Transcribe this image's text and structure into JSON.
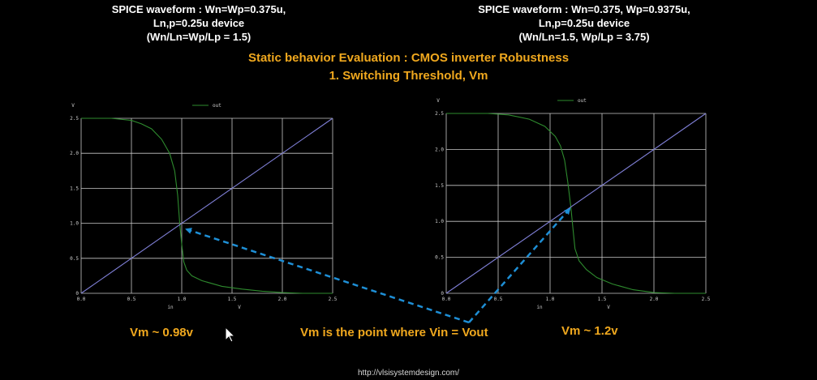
{
  "header_left": {
    "line1": "SPICE waveform : Wn=Wp=0.375u,",
    "line2": "Ln,p=0.25u device",
    "line3": "(Wn/Ln=Wp/Lp = 1.5)"
  },
  "header_right": {
    "line1": "SPICE waveform : Wn=0.375, Wp=0.9375u,",
    "line2": "Ln,p=0.25u device",
    "line3": "(Wn/Ln=1.5, Wp/Lp = 3.75)"
  },
  "title_line1": "Static behavior Evaluation : CMOS inverter Robustness",
  "title_line2": "1. Switching Threshold, Vm",
  "annotations": {
    "vm_left": "Vm ~ 0.98v",
    "vm_mid": "Vm is the point where Vin = Vout",
    "vm_right": "Vm ~ 1.2v"
  },
  "footer_url": "http://vlsisystemdesign.com/",
  "colors": {
    "background": "#000000",
    "grid": "#c8c8c8",
    "out_curve": "#2e8b2e",
    "diagonal": "#7f7fd6",
    "arrow": "#1e8fd6",
    "header": "#ffffff",
    "accent": "#f0a81e"
  },
  "chart_data": [
    {
      "type": "line",
      "title": "",
      "xlabel": "in",
      "x_unit": "V",
      "ylabel": "",
      "y_unit": "V",
      "xlim": [
        0,
        2.5
      ],
      "ylim": [
        0,
        2.5
      ],
      "x_ticks": [
        "0.0",
        "0.5",
        "1.0",
        "1.5",
        "2.0",
        "2.5"
      ],
      "y_ticks": [
        "0",
        "0.5",
        "1.0",
        "1.5",
        "2.0",
        "2.5"
      ],
      "grid": true,
      "legend": "top-left",
      "series": [
        {
          "name": "out",
          "points": [
            [
              0,
              2.5
            ],
            [
              0.3,
              2.5
            ],
            [
              0.5,
              2.47
            ],
            [
              0.6,
              2.42
            ],
            [
              0.7,
              2.35
            ],
            [
              0.8,
              2.2
            ],
            [
              0.88,
              2.0
            ],
            [
              0.93,
              1.75
            ],
            [
              0.96,
              1.4
            ],
            [
              0.98,
              1.0
            ],
            [
              1.0,
              0.7
            ],
            [
              1.02,
              0.45
            ],
            [
              1.05,
              0.33
            ],
            [
              1.1,
              0.25
            ],
            [
              1.2,
              0.18
            ],
            [
              1.4,
              0.1
            ],
            [
              1.6,
              0.06
            ],
            [
              1.8,
              0.03
            ],
            [
              2.0,
              0.01
            ],
            [
              2.2,
              0.0
            ],
            [
              2.5,
              0.0
            ]
          ]
        },
        {
          "name": "",
          "points": [
            [
              0,
              0
            ],
            [
              2.5,
              2.5
            ]
          ]
        }
      ]
    },
    {
      "type": "line",
      "title": "",
      "xlabel": "in",
      "x_unit": "V",
      "ylabel": "",
      "y_unit": "V",
      "xlim": [
        0,
        2.5
      ],
      "ylim": [
        0,
        2.5
      ],
      "x_ticks": [
        "0.0",
        "0.5",
        "1.0",
        "1.5",
        "2.0",
        "2.5"
      ],
      "y_ticks": [
        "0",
        "0.5",
        "1.0",
        "1.5",
        "2.0",
        "2.5"
      ],
      "grid": true,
      "legend": "top-left",
      "series": [
        {
          "name": "out",
          "points": [
            [
              0,
              2.5
            ],
            [
              0.4,
              2.5
            ],
            [
              0.6,
              2.48
            ],
            [
              0.8,
              2.42
            ],
            [
              0.95,
              2.32
            ],
            [
              1.05,
              2.18
            ],
            [
              1.1,
              2.05
            ],
            [
              1.14,
              1.85
            ],
            [
              1.17,
              1.55
            ],
            [
              1.2,
              1.2
            ],
            [
              1.22,
              0.9
            ],
            [
              1.24,
              0.62
            ],
            [
              1.28,
              0.45
            ],
            [
              1.35,
              0.33
            ],
            [
              1.45,
              0.22
            ],
            [
              1.6,
              0.13
            ],
            [
              1.8,
              0.05
            ],
            [
              2.0,
              0.01
            ],
            [
              2.2,
              0.0
            ],
            [
              2.5,
              0.0
            ]
          ]
        },
        {
          "name": "",
          "points": [
            [
              0,
              0
            ],
            [
              2.5,
              2.5
            ]
          ]
        }
      ]
    }
  ]
}
